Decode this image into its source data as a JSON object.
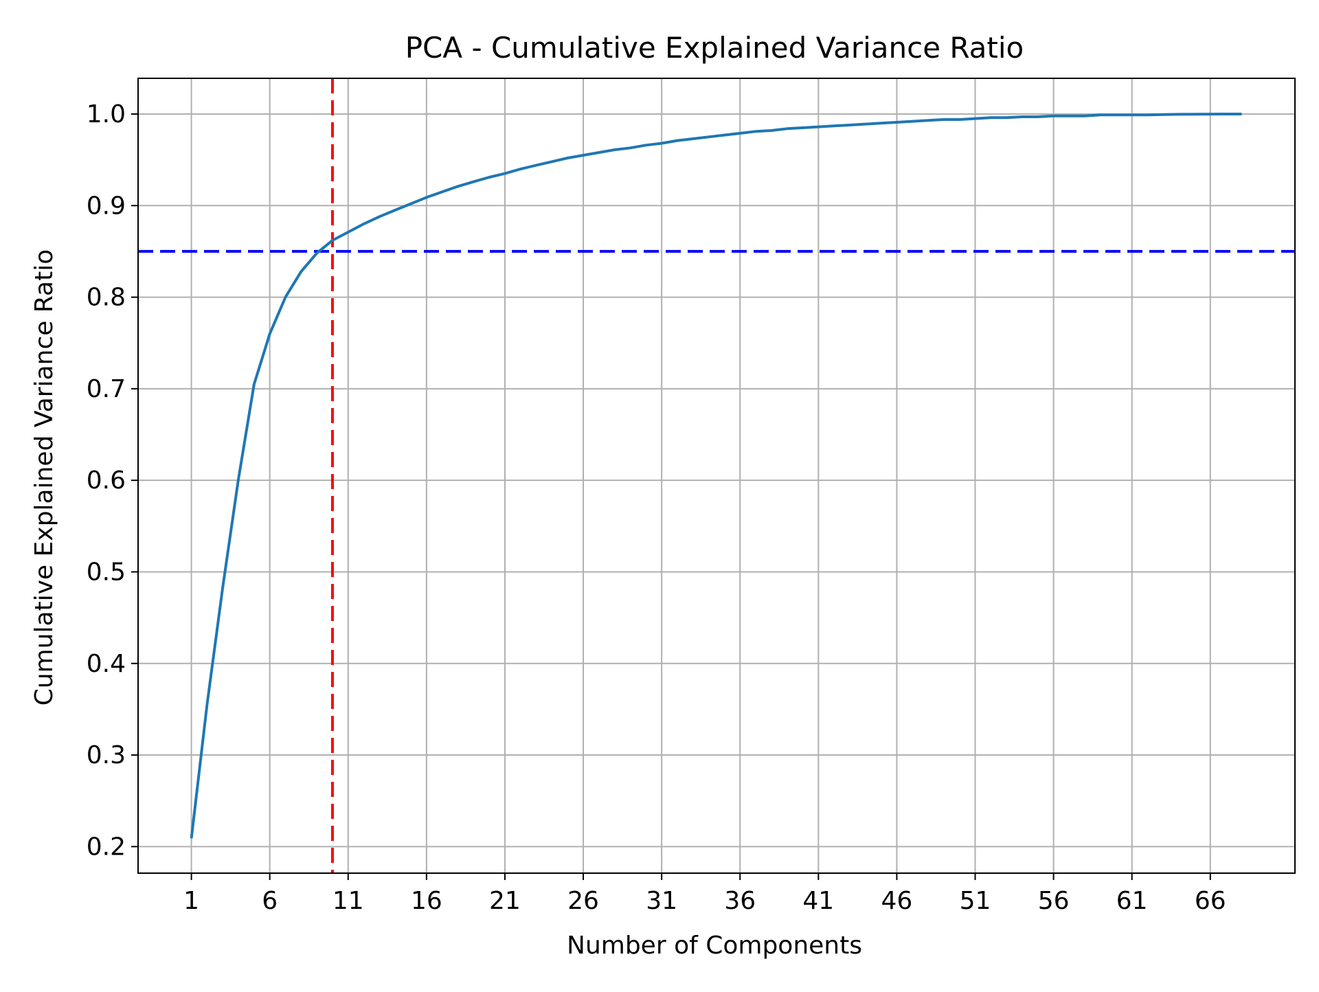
{
  "chart_data": {
    "type": "line",
    "title": "PCA - Cumulative Explained Variance Ratio",
    "xlabel": "Number of Components",
    "ylabel": "Cumulative Explained Variance Ratio",
    "xlim": [
      -2.4,
      71.4
    ],
    "ylim": [
      0.171,
      1.039
    ],
    "xticks": [
      1,
      6,
      11,
      16,
      21,
      26,
      31,
      36,
      41,
      46,
      51,
      56,
      61,
      66
    ],
    "yticks": [
      0.2,
      0.3,
      0.4,
      0.5,
      0.6,
      0.7,
      0.8,
      0.9,
      1.0
    ],
    "ytick_labels": [
      "0.2",
      "0.3",
      "0.4",
      "0.5",
      "0.6",
      "0.7",
      "0.8",
      "0.9",
      "1.0"
    ],
    "grid": true,
    "series": [
      {
        "color": "#1f77b4",
        "x": [
          1,
          2,
          3,
          4,
          5,
          6,
          7,
          8,
          9,
          10,
          11,
          12,
          13,
          14,
          15,
          16,
          17,
          18,
          19,
          20,
          21,
          22,
          23,
          24,
          25,
          26,
          27,
          28,
          29,
          30,
          31,
          32,
          33,
          34,
          35,
          36,
          37,
          38,
          39,
          40,
          41,
          42,
          43,
          44,
          45,
          46,
          47,
          48,
          49,
          50,
          51,
          52,
          53,
          54,
          55,
          56,
          57,
          58,
          59,
          60,
          61,
          62,
          63,
          64,
          65,
          66,
          67,
          68
        ],
        "y": [
          0.209,
          0.355,
          0.483,
          0.601,
          0.705,
          0.76,
          0.8,
          0.828,
          0.848,
          0.862,
          0.871,
          0.88,
          0.888,
          0.895,
          0.902,
          0.909,
          0.915,
          0.921,
          0.926,
          0.931,
          0.935,
          0.94,
          0.944,
          0.948,
          0.952,
          0.955,
          0.958,
          0.961,
          0.963,
          0.966,
          0.968,
          0.971,
          0.973,
          0.975,
          0.977,
          0.979,
          0.981,
          0.982,
          0.984,
          0.985,
          0.986,
          0.987,
          0.988,
          0.989,
          0.99,
          0.991,
          0.992,
          0.993,
          0.994,
          0.994,
          0.995,
          0.996,
          0.996,
          0.997,
          0.997,
          0.998,
          0.998,
          0.998,
          0.999,
          0.999,
          0.999,
          0.999,
          0.9995,
          0.9997,
          0.9998,
          0.9999,
          1.0,
          1.0
        ]
      }
    ],
    "reference_lines": [
      {
        "orientation": "horizontal",
        "value": 0.85,
        "color": "#0000ff",
        "style": "dashed"
      },
      {
        "orientation": "vertical",
        "value": 10,
        "color": "#ff0000",
        "style": "dashed"
      }
    ],
    "colors": {
      "line": "#1f77b4",
      "grid": "#b0b0b0",
      "axes": "#000000",
      "background": "#ffffff"
    }
  }
}
